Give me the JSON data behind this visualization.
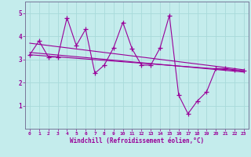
{
  "title": "",
  "xlabel": "Windchill (Refroidissement éolien,°C)",
  "ylabel": "",
  "bg_color": "#c4ecec",
  "line_color": "#990099",
  "grid_color": "#a8dada",
  "axis_color": "#777799",
  "tick_color": "#990099",
  "label_color": "#990099",
  "xlim": [
    -0.5,
    23.5
  ],
  "ylim": [
    0,
    5.5
  ],
  "yticks": [
    1,
    2,
    3,
    4,
    5
  ],
  "xticks": [
    0,
    1,
    2,
    3,
    4,
    5,
    6,
    7,
    8,
    9,
    10,
    11,
    12,
    13,
    14,
    15,
    16,
    17,
    18,
    19,
    20,
    21,
    22,
    23
  ],
  "series1_x": [
    0,
    1,
    2,
    3,
    4,
    5,
    6,
    7,
    8,
    9,
    10,
    11,
    12,
    13,
    14,
    15,
    16,
    17,
    18,
    19,
    20,
    21,
    22,
    23
  ],
  "series1_y": [
    3.2,
    3.8,
    3.1,
    3.1,
    4.8,
    3.6,
    4.3,
    2.4,
    2.75,
    3.5,
    4.6,
    3.45,
    2.75,
    2.75,
    3.5,
    4.9,
    1.45,
    0.65,
    1.2,
    1.6,
    2.6,
    2.6,
    2.55,
    2.5
  ],
  "series2_x": [
    0,
    23
  ],
  "series2_y": [
    3.7,
    2.55
  ],
  "series3_x": [
    0,
    23
  ],
  "series3_y": [
    3.3,
    2.45
  ],
  "series4_x": [
    0,
    23
  ],
  "series4_y": [
    3.2,
    2.5
  ],
  "marker": "+",
  "markersize": 4,
  "linewidth": 0.8
}
